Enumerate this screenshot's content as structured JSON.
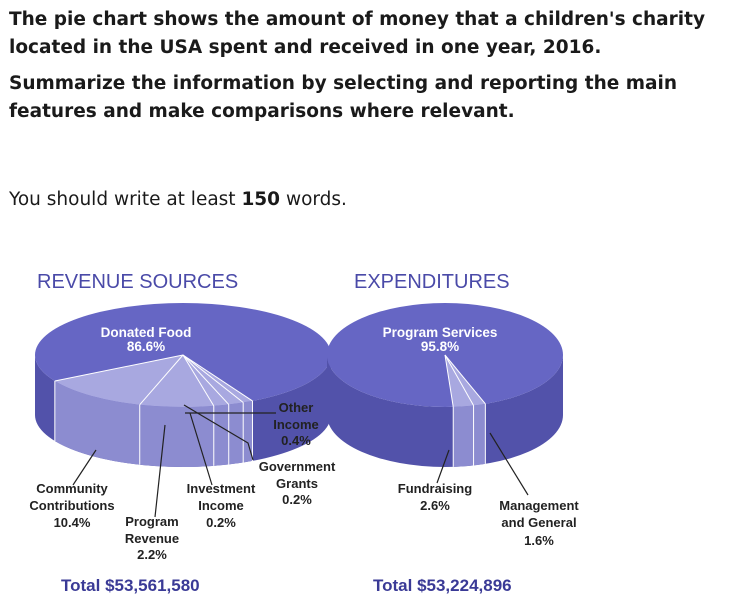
{
  "question": {
    "line1": "The pie chart shows the amount of money that a children's charity located in the USA spent and received in one year, 2016.",
    "line2": "Summarize the information by selecting and reporting the main features and make comparisons where relevant."
  },
  "instruction": {
    "prefix": "You should write at least ",
    "count": "150",
    "suffix": " words."
  },
  "chart_data": [
    {
      "type": "pie",
      "title": "REVENUE SOURCES",
      "total": "Total $53,561,580",
      "slices": [
        {
          "name": "Donated Food",
          "value": 86.6,
          "label": "86.6%"
        },
        {
          "name": "Community Contributions",
          "value": 10.4,
          "label": "10.4%"
        },
        {
          "name": "Program Revenue",
          "value": 2.2,
          "label": "2.2%"
        },
        {
          "name": "Investment Income",
          "value": 0.2,
          "label": "0.2%"
        },
        {
          "name": "Government Grants",
          "value": 0.2,
          "label": "0.2%"
        },
        {
          "name": "Other Income",
          "value": 0.4,
          "label": "0.4%"
        }
      ],
      "colors": {
        "main": "#6666c4",
        "minor": "#a8a8e0",
        "side": "#5252aa",
        "side_minor": "#8c8cd0"
      }
    },
    {
      "type": "pie",
      "title": "EXPENDITURES",
      "total": "Total $53,224,896",
      "slices": [
        {
          "name": "Program Services",
          "value": 95.8,
          "label": "95.8%"
        },
        {
          "name": "Fundraising",
          "value": 2.6,
          "label": "2.6%"
        },
        {
          "name": "Management and General",
          "value": 1.6,
          "label": "1.6%"
        }
      ],
      "colors": {
        "main": "#6666c4",
        "minor": "#a8a8e0",
        "side": "#5252aa",
        "side_minor": "#8c8cd0"
      }
    }
  ]
}
